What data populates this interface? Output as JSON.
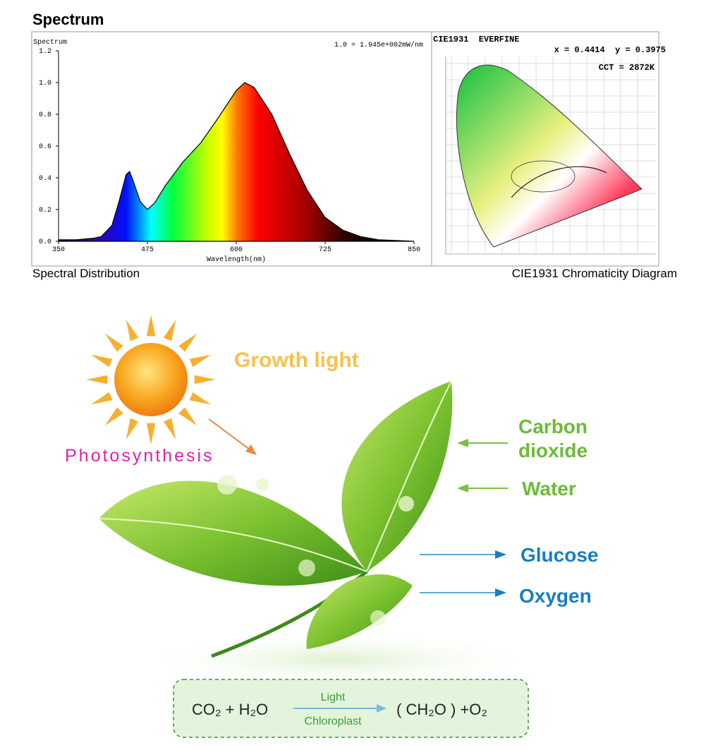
{
  "heading": "Spectrum",
  "chart_data": {
    "type": "line",
    "y_label": "Spectrum",
    "annotation": "1.0 = 1.945e+002mW/nm",
    "x_label": "Wavelength(nm)",
    "x": [
      350,
      375,
      400,
      410,
      425,
      435,
      445,
      450,
      455,
      465,
      475,
      485,
      500,
      525,
      550,
      575,
      600,
      612,
      625,
      650,
      675,
      700,
      725,
      750,
      775,
      800,
      825,
      850
    ],
    "values": [
      0.01,
      0.01,
      0.02,
      0.03,
      0.1,
      0.25,
      0.42,
      0.44,
      0.38,
      0.25,
      0.2,
      0.24,
      0.35,
      0.5,
      0.62,
      0.78,
      0.95,
      1.0,
      0.97,
      0.8,
      0.55,
      0.32,
      0.15,
      0.07,
      0.03,
      0.01,
      0.005,
      0
    ],
    "color": "#000000",
    "xlim": [
      350,
      850
    ],
    "ylim": [
      0,
      1.2
    ],
    "xticks": [
      350,
      475,
      600,
      725,
      850
    ],
    "yticks": [
      {
        "value": 0,
        "label": "0.0"
      },
      {
        "value": 0.2,
        "label": "0.2"
      },
      {
        "value": 0.4,
        "label": "0.4"
      },
      {
        "value": 0.6,
        "label": "0.6"
      },
      {
        "value": 0.8,
        "label": "0.8"
      },
      {
        "value": 1,
        "label": "1.0"
      },
      {
        "value": 1.2,
        "label": "1.2"
      }
    ]
  },
  "captions": {
    "left": "Spectral Distribution",
    "right": "CIE1931 Chromaticity Diagram"
  },
  "cie": {
    "title": "CIE1931  EVERFINE",
    "coords": "x = 0.4414  y = 0.3975",
    "cct": "CCT = 2872K"
  },
  "infographic": {
    "growth": "Growth light",
    "photosynthesis": "Photosynthesis",
    "carbon": [
      "Carbon",
      "dioxide"
    ],
    "water": "Water",
    "glucose": "Glucose",
    "oxygen": "Oxygen"
  },
  "equation": {
    "left": "CO₂ + H₂O",
    "top": "Light",
    "bottom": "Chloroplast",
    "right": "( CH₂O ) +O₂"
  }
}
